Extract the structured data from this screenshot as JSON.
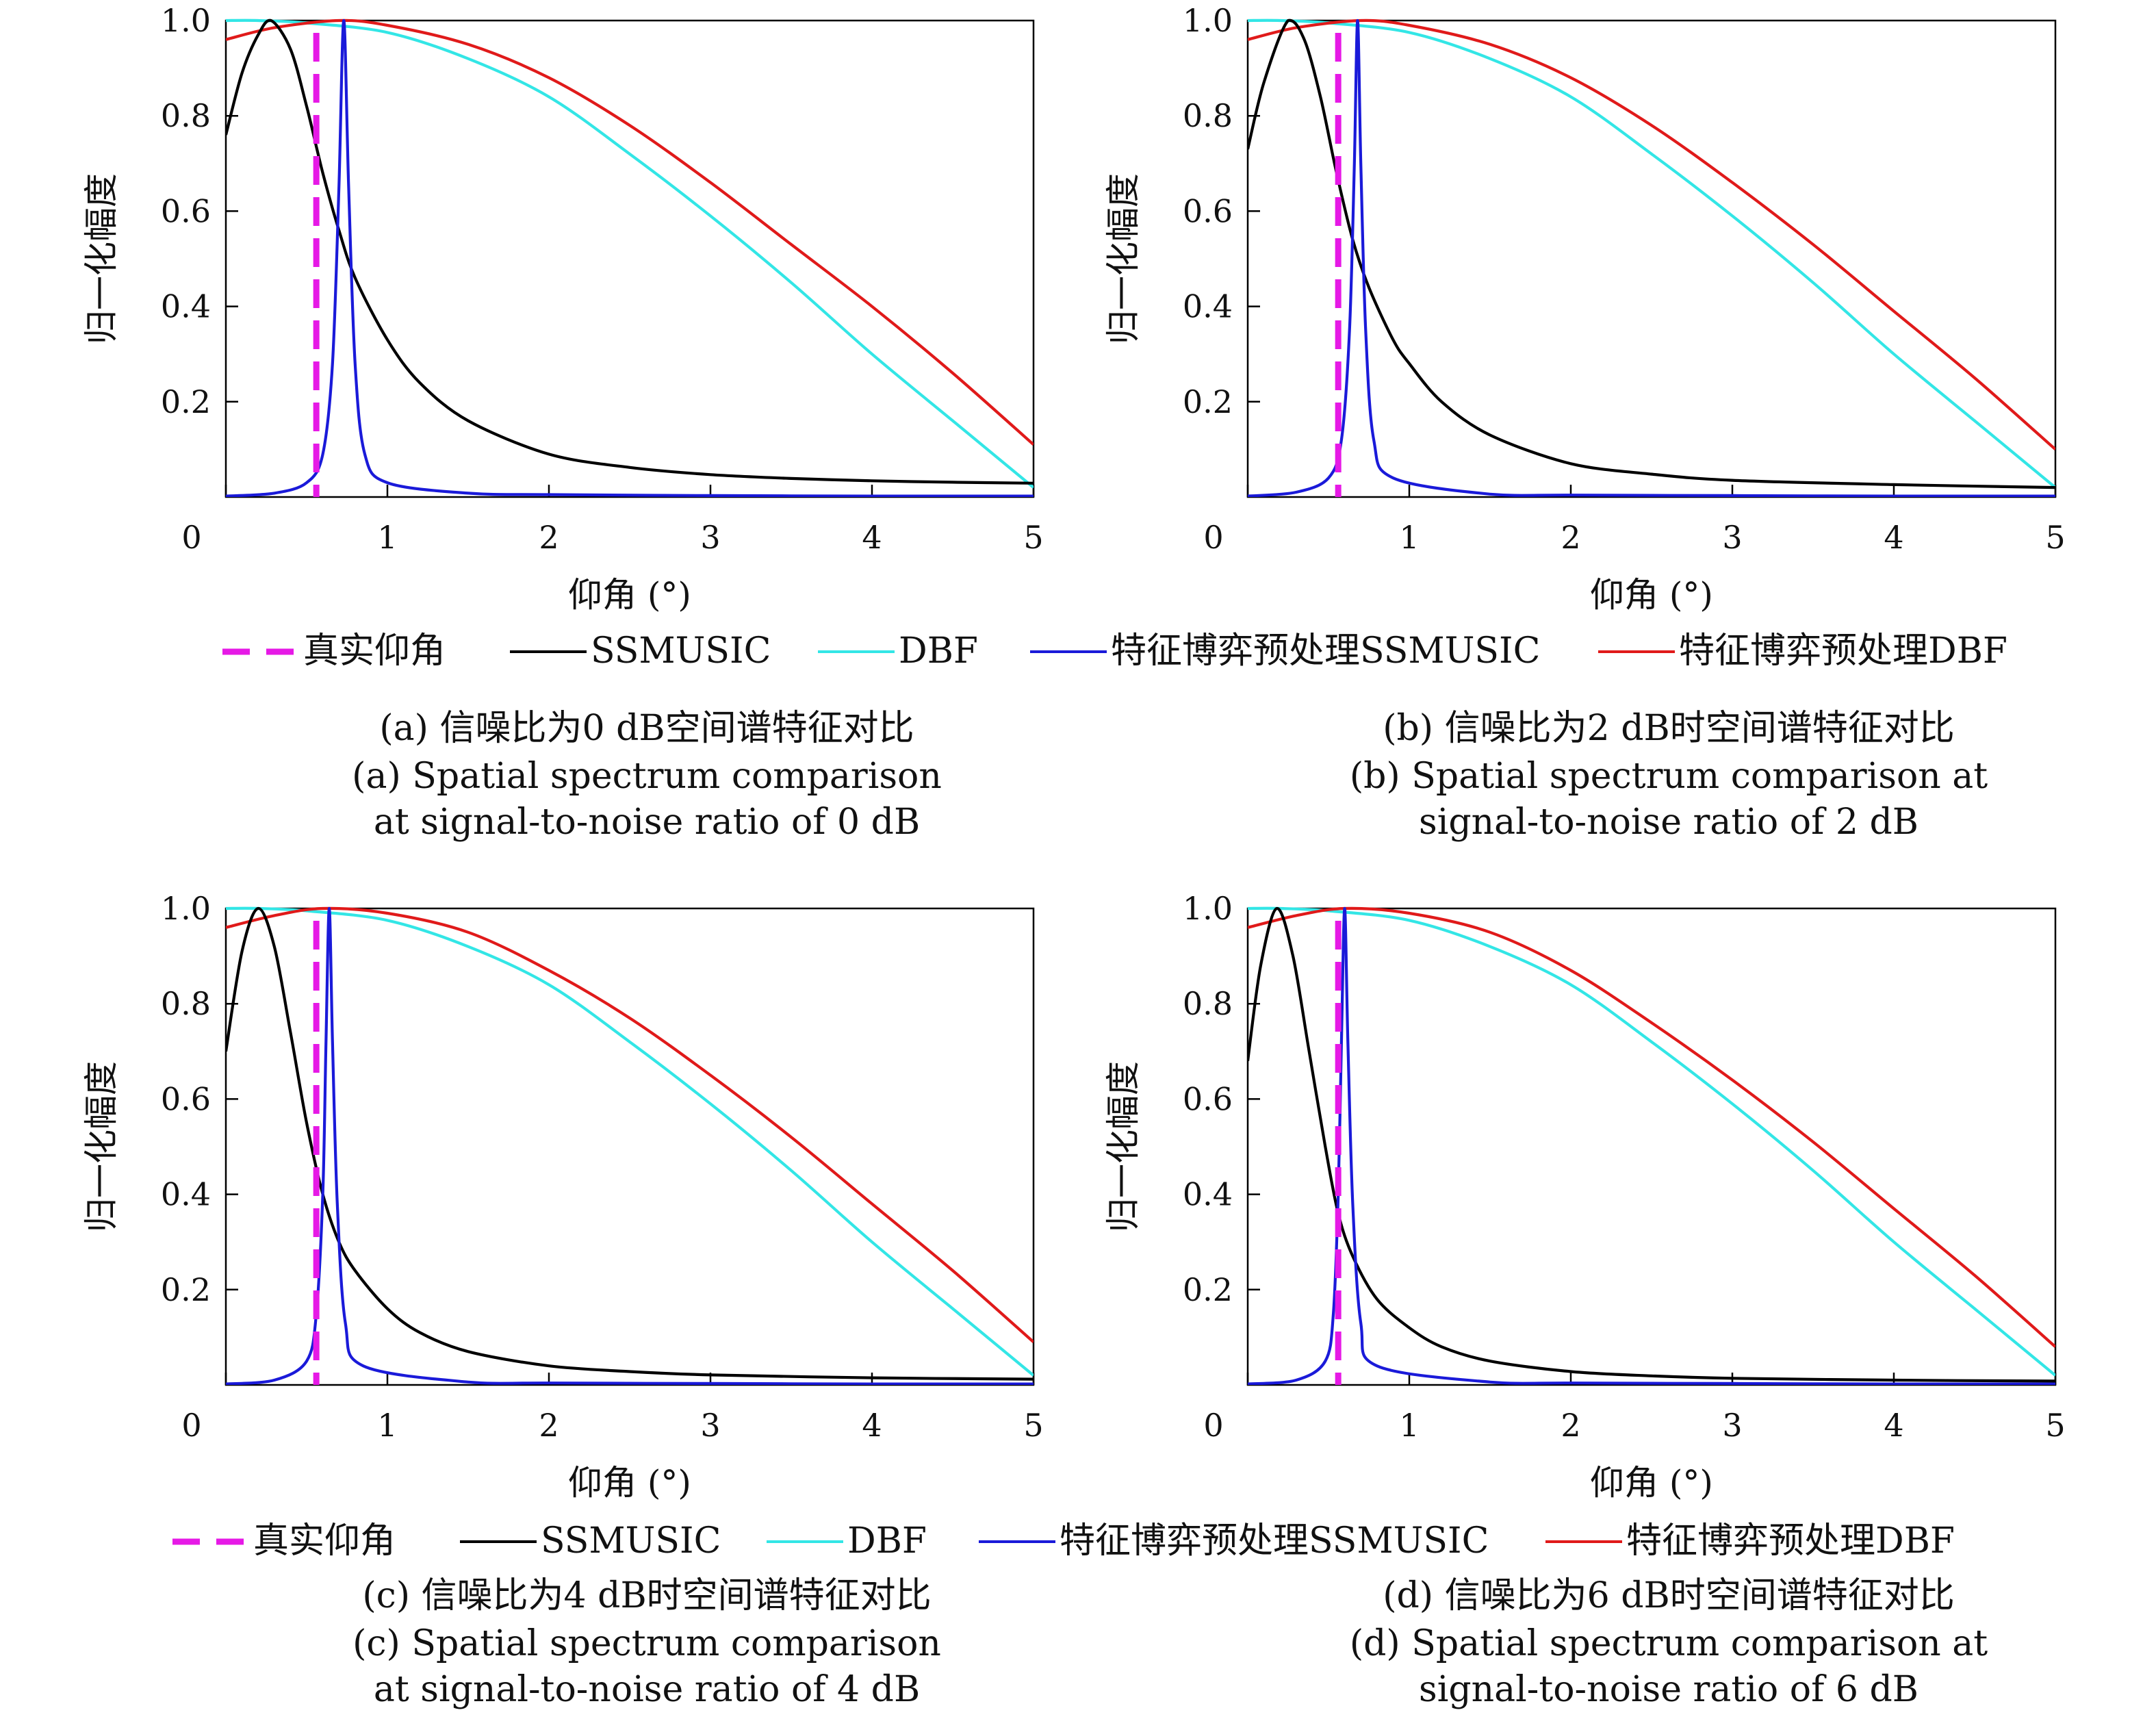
{
  "legend_rows": [
    {
      "series_labels": [
        "真实仰角",
        "SSMUSIC",
        "DBF",
        "特征博弈预处理SSMUSIC",
        "特征博弈预处理DBF"
      ]
    },
    {
      "series_labels": [
        "真实仰角",
        "SSMUSIC",
        "DBF",
        "特征博弈预处理SSMUSIC",
        "特征博弈预处理DBF"
      ]
    }
  ],
  "colors": {
    "true_angle": "#e619e6",
    "ssmusic": "#000000",
    "dbf": "#33e6e6",
    "pre_ssmusic": "#1a1ad9",
    "pre_dbf": "#e01a1a"
  },
  "chart_data": [
    {
      "type": "line",
      "xlabel": "仰角 (°)",
      "ylabel": "归一化幅度",
      "xlim": [
        0,
        5
      ],
      "ylim": [
        0,
        1
      ],
      "xticks": [
        "0",
        "1",
        "2",
        "3",
        "4",
        "5"
      ],
      "yticks": [
        "0.2",
        "0.4",
        "0.6",
        "0.8",
        "1.0"
      ],
      "caption_cn": "(a) 信噪比为0 dB空间谱特征对比",
      "caption_en": [
        "(a) Spatial spectrum comparison",
        "at signal-to-noise ratio of 0 dB"
      ],
      "true_angle": 0.56,
      "series": [
        {
          "name": "SSMUSIC",
          "peak": 0.28,
          "values": {
            "x": [
              0,
              0.1,
              0.2,
              0.28,
              0.4,
              0.5,
              0.6,
              0.7,
              0.8,
              1.0,
              1.2,
              1.5,
              2.0,
              2.5,
              3.0,
              3.5,
              4.0,
              4.5,
              5.0
            ],
            "y": [
              0.76,
              0.89,
              0.97,
              1.0,
              0.94,
              0.82,
              0.68,
              0.56,
              0.46,
              0.33,
              0.24,
              0.16,
              0.09,
              0.062,
              0.047,
              0.039,
              0.034,
              0.031,
              0.029
            ]
          }
        },
        {
          "name": "DBF",
          "values": {
            "x": [
              0,
              0.2,
              0.5,
              1.0,
              1.5,
              2.0,
              2.5,
              3.0,
              3.5,
              4.0,
              4.5,
              5.0
            ],
            "y": [
              1.0,
              1.0,
              0.995,
              0.975,
              0.92,
              0.84,
              0.72,
              0.59,
              0.45,
              0.3,
              0.16,
              0.02
            ]
          }
        },
        {
          "name": "特征博弈预处理SSMUSIC",
          "peak": 0.73,
          "values": {
            "x": [
              0,
              0.3,
              0.5,
              0.6,
              0.66,
              0.7,
              0.73,
              0.76,
              0.8,
              0.86,
              1.0,
              1.5,
              2.0,
              3.0,
              4.0,
              5.0
            ],
            "y": [
              0.002,
              0.008,
              0.03,
              0.09,
              0.28,
              0.65,
              1.0,
              0.65,
              0.28,
              0.09,
              0.03,
              0.008,
              0.005,
              0.003,
              0.002,
              0.002
            ]
          }
        },
        {
          "name": "特征博弈预处理DBF",
          "values": {
            "x": [
              0,
              0.3,
              0.7,
              1.0,
              1.5,
              2.0,
              2.5,
              3.0,
              3.5,
              4.0,
              4.5,
              5.0
            ],
            "y": [
              0.96,
              0.985,
              1.0,
              0.99,
              0.95,
              0.88,
              0.78,
              0.66,
              0.53,
              0.4,
              0.26,
              0.11
            ]
          }
        }
      ]
    },
    {
      "type": "line",
      "xlabel": "仰角 (°)",
      "ylabel": "归一化幅度",
      "xlim": [
        0,
        5
      ],
      "ylim": [
        0,
        1
      ],
      "xticks": [
        "0",
        "1",
        "2",
        "3",
        "4",
        "5"
      ],
      "yticks": [
        "0.2",
        "0.4",
        "0.6",
        "0.8",
        "1.0"
      ],
      "caption_cn": "(b) 信噪比为2 dB时空间谱特征对比",
      "caption_en": [
        "(b) Spatial spectrum comparison at",
        "signal-to-noise ratio of 2 dB"
      ],
      "true_angle": 0.56,
      "series": [
        {
          "name": "SSMUSIC",
          "peak": 0.25,
          "values": {
            "x": [
              0,
              0.1,
              0.25,
              0.35,
              0.45,
              0.55,
              0.65,
              0.75,
              0.9,
              1.0,
              1.2,
              1.5,
              2.0,
              2.5,
              3.0,
              4.0,
              5.0
            ],
            "y": [
              0.73,
              0.87,
              1.0,
              0.96,
              0.84,
              0.68,
              0.54,
              0.44,
              0.33,
              0.28,
              0.2,
              0.13,
              0.07,
              0.048,
              0.035,
              0.026,
              0.02
            ]
          }
        },
        {
          "name": "DBF",
          "values": {
            "x": [
              0,
              0.2,
              0.5,
              1.0,
              1.5,
              2.0,
              2.5,
              3.0,
              3.5,
              4.0,
              4.5,
              5.0
            ],
            "y": [
              1.0,
              1.0,
              0.995,
              0.975,
              0.92,
              0.84,
              0.72,
              0.59,
              0.45,
              0.3,
              0.16,
              0.02
            ]
          }
        },
        {
          "name": "特征博弈预处理SSMUSIC",
          "peak": 0.68,
          "values": {
            "x": [
              0,
              0.3,
              0.5,
              0.58,
              0.63,
              0.66,
              0.68,
              0.7,
              0.73,
              0.78,
              0.9,
              1.5,
              2.0,
              3.0,
              4.0,
              5.0
            ],
            "y": [
              0.002,
              0.01,
              0.04,
              0.12,
              0.35,
              0.7,
              1.0,
              0.7,
              0.35,
              0.12,
              0.04,
              0.006,
              0.004,
              0.003,
              0.002,
              0.002
            ]
          }
        },
        {
          "name": "特征博弈预处理DBF",
          "values": {
            "x": [
              0,
              0.3,
              0.7,
              1.0,
              1.5,
              2.0,
              2.5,
              3.0,
              3.5,
              4.0,
              4.5,
              5.0
            ],
            "y": [
              0.96,
              0.985,
              1.0,
              0.99,
              0.95,
              0.88,
              0.78,
              0.66,
              0.53,
              0.39,
              0.25,
              0.1
            ]
          }
        }
      ]
    },
    {
      "type": "line",
      "xlabel": "仰角 (°)",
      "ylabel": "归一化幅度",
      "xlim": [
        0,
        5
      ],
      "ylim": [
        0,
        1
      ],
      "xticks": [
        "0",
        "1",
        "2",
        "3",
        "4",
        "5"
      ],
      "yticks": [
        "0.2",
        "0.4",
        "0.6",
        "0.8",
        "1.0"
      ],
      "caption_cn": "(c) 信噪比为4 dB时空间谱特征对比",
      "caption_en": [
        "(c) Spatial spectrum comparison",
        "at signal-to-noise ratio of 4 dB"
      ],
      "true_angle": 0.56,
      "series": [
        {
          "name": "SSMUSIC",
          "peak": 0.2,
          "values": {
            "x": [
              0,
              0.1,
              0.2,
              0.3,
              0.4,
              0.5,
              0.6,
              0.7,
              0.8,
              1.0,
              1.2,
              1.5,
              2.0,
              2.5,
              3.0,
              4.0,
              5.0
            ],
            "y": [
              0.7,
              0.91,
              1.0,
              0.92,
              0.74,
              0.55,
              0.4,
              0.3,
              0.24,
              0.16,
              0.11,
              0.07,
              0.04,
              0.028,
              0.021,
              0.015,
              0.012
            ]
          }
        },
        {
          "name": "DBF",
          "values": {
            "x": [
              0,
              0.2,
              0.5,
              1.0,
              1.5,
              2.0,
              2.5,
              3.0,
              3.5,
              4.0,
              4.5,
              5.0
            ],
            "y": [
              1.0,
              1.0,
              0.995,
              0.975,
              0.92,
              0.84,
              0.72,
              0.59,
              0.45,
              0.3,
              0.16,
              0.02
            ]
          }
        },
        {
          "name": "特征博弈预处理SSMUSIC",
          "peak": 0.64,
          "values": {
            "x": [
              0,
              0.3,
              0.5,
              0.56,
              0.6,
              0.62,
              0.64,
              0.66,
              0.69,
              0.74,
              0.85,
              1.5,
              2.0,
              3.0,
              4.0,
              5.0
            ],
            "y": [
              0.002,
              0.01,
              0.05,
              0.15,
              0.4,
              0.72,
              1.0,
              0.72,
              0.38,
              0.13,
              0.04,
              0.006,
              0.004,
              0.003,
              0.002,
              0.002
            ]
          }
        },
        {
          "name": "特征博弈预处理DBF",
          "values": {
            "x": [
              0,
              0.3,
              0.6,
              1.0,
              1.5,
              2.0,
              2.5,
              3.0,
              3.5,
              4.0,
              4.5,
              5.0
            ],
            "y": [
              0.96,
              0.985,
              1.0,
              0.99,
              0.95,
              0.87,
              0.77,
              0.65,
              0.52,
              0.38,
              0.24,
              0.09
            ]
          }
        }
      ]
    },
    {
      "type": "line",
      "xlabel": "仰角 (°)",
      "ylabel": "归一化幅度",
      "xlim": [
        0,
        5
      ],
      "ylim": [
        0,
        1
      ],
      "xticks": [
        "0",
        "1",
        "2",
        "3",
        "4",
        "5"
      ],
      "yticks": [
        "0.2",
        "0.4",
        "0.6",
        "0.8",
        "1.0"
      ],
      "caption_cn": "(d) 信噪比为6 dB时空间谱特征对比",
      "caption_en": [
        "(d) Spatial spectrum comparison at",
        "signal-to-noise ratio of 6 dB"
      ],
      "true_angle": 0.56,
      "series": [
        {
          "name": "SSMUSIC",
          "peak": 0.18,
          "values": {
            "x": [
              0,
              0.08,
              0.18,
              0.28,
              0.38,
              0.48,
              0.56,
              0.65,
              0.8,
              1.0,
              1.2,
              1.5,
              2.0,
              2.5,
              3.0,
              4.0,
              5.0
            ],
            "y": [
              0.68,
              0.88,
              1.0,
              0.9,
              0.7,
              0.5,
              0.36,
              0.27,
              0.18,
              0.12,
              0.08,
              0.05,
              0.028,
              0.019,
              0.014,
              0.01,
              0.008
            ]
          }
        },
        {
          "name": "DBF",
          "values": {
            "x": [
              0,
              0.2,
              0.5,
              1.0,
              1.5,
              2.0,
              2.5,
              3.0,
              3.5,
              4.0,
              4.5,
              5.0
            ],
            "y": [
              1.0,
              1.0,
              0.995,
              0.975,
              0.92,
              0.84,
              0.72,
              0.59,
              0.45,
              0.3,
              0.16,
              0.02
            ]
          }
        },
        {
          "name": "特征博弈预处理SSMUSIC",
          "peak": 0.6,
          "values": {
            "x": [
              0,
              0.3,
              0.48,
              0.53,
              0.56,
              0.58,
              0.6,
              0.62,
              0.65,
              0.7,
              0.8,
              1.5,
              2.0,
              3.0,
              4.0,
              5.0
            ],
            "y": [
              0.002,
              0.01,
              0.05,
              0.15,
              0.4,
              0.72,
              1.0,
              0.72,
              0.38,
              0.13,
              0.04,
              0.006,
              0.004,
              0.003,
              0.002,
              0.002
            ]
          }
        },
        {
          "name": "特征博弈预处理DBF",
          "values": {
            "x": [
              0,
              0.3,
              0.6,
              1.0,
              1.5,
              2.0,
              2.5,
              3.0,
              3.5,
              4.0,
              4.5,
              5.0
            ],
            "y": [
              0.96,
              0.985,
              1.0,
              0.99,
              0.95,
              0.87,
              0.76,
              0.64,
              0.51,
              0.37,
              0.23,
              0.08
            ]
          }
        }
      ]
    }
  ]
}
